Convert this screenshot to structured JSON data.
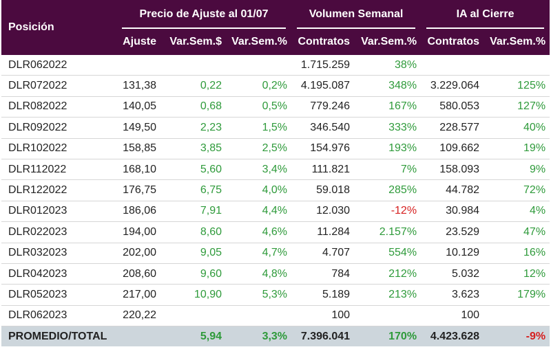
{
  "header": {
    "posicion": "Posición",
    "group1": "Precio de Ajuste al 01/07",
    "group2": "Volumen Semanal",
    "group3": "IA al Cierre",
    "sub": [
      "Ajuste",
      "Var.Sem.$",
      "Var.Sem.%",
      "Contratos",
      "Var.Sem.%",
      "Contratos",
      "Var.Sem.%"
    ]
  },
  "colors": {
    "header_bg": "#4b0a3f",
    "positive": "#2e9a3a",
    "negative": "#d62020",
    "total_bg": "#cdd6dc"
  },
  "rows": [
    [
      "DLR062022",
      "",
      "",
      "",
      "1.715.259",
      "38%",
      "",
      ""
    ],
    [
      "DLR072022",
      "131,38",
      "0,22",
      "0,2%",
      "4.195.087",
      "348%",
      "3.229.064",
      "125%"
    ],
    [
      "DLR082022",
      "140,05",
      "0,68",
      "0,5%",
      "779.246",
      "167%",
      "580.053",
      "127%"
    ],
    [
      "DLR092022",
      "149,50",
      "2,23",
      "1,5%",
      "346.540",
      "333%",
      "228.577",
      "40%"
    ],
    [
      "DLR102022",
      "158,85",
      "3,85",
      "2,5%",
      "154.976",
      "193%",
      "109.662",
      "19%"
    ],
    [
      "DLR112022",
      "168,10",
      "5,60",
      "3,4%",
      "111.821",
      "7%",
      "158.093",
      "9%"
    ],
    [
      "DLR122022",
      "176,75",
      "6,75",
      "4,0%",
      "59.018",
      "285%",
      "44.782",
      "72%"
    ],
    [
      "DLR012023",
      "186,06",
      "7,91",
      "4,4%",
      "12.030",
      "-12%",
      "30.984",
      "4%"
    ],
    [
      "DLR022023",
      "194,00",
      "8,60",
      "4,6%",
      "11.284",
      "2.157%",
      "23.529",
      "47%"
    ],
    [
      "DLR032023",
      "202,00",
      "9,05",
      "4,7%",
      "4.707",
      "554%",
      "10.129",
      "16%"
    ],
    [
      "DLR042023",
      "208,60",
      "9,60",
      "4,8%",
      "784",
      "212%",
      "5.032",
      "12%"
    ],
    [
      "DLR052023",
      "217,00",
      "10,90",
      "5,3%",
      "5.189",
      "213%",
      "3.623",
      "179%"
    ],
    [
      "DLR062023",
      "220,22",
      "",
      "",
      "100",
      "",
      "100",
      ""
    ]
  ],
  "total": [
    "PROMEDIO/TOTAL",
    "",
    "5,94",
    "3,3%",
    "7.396.041",
    "170%",
    "4.423.628",
    "-9%"
  ]
}
